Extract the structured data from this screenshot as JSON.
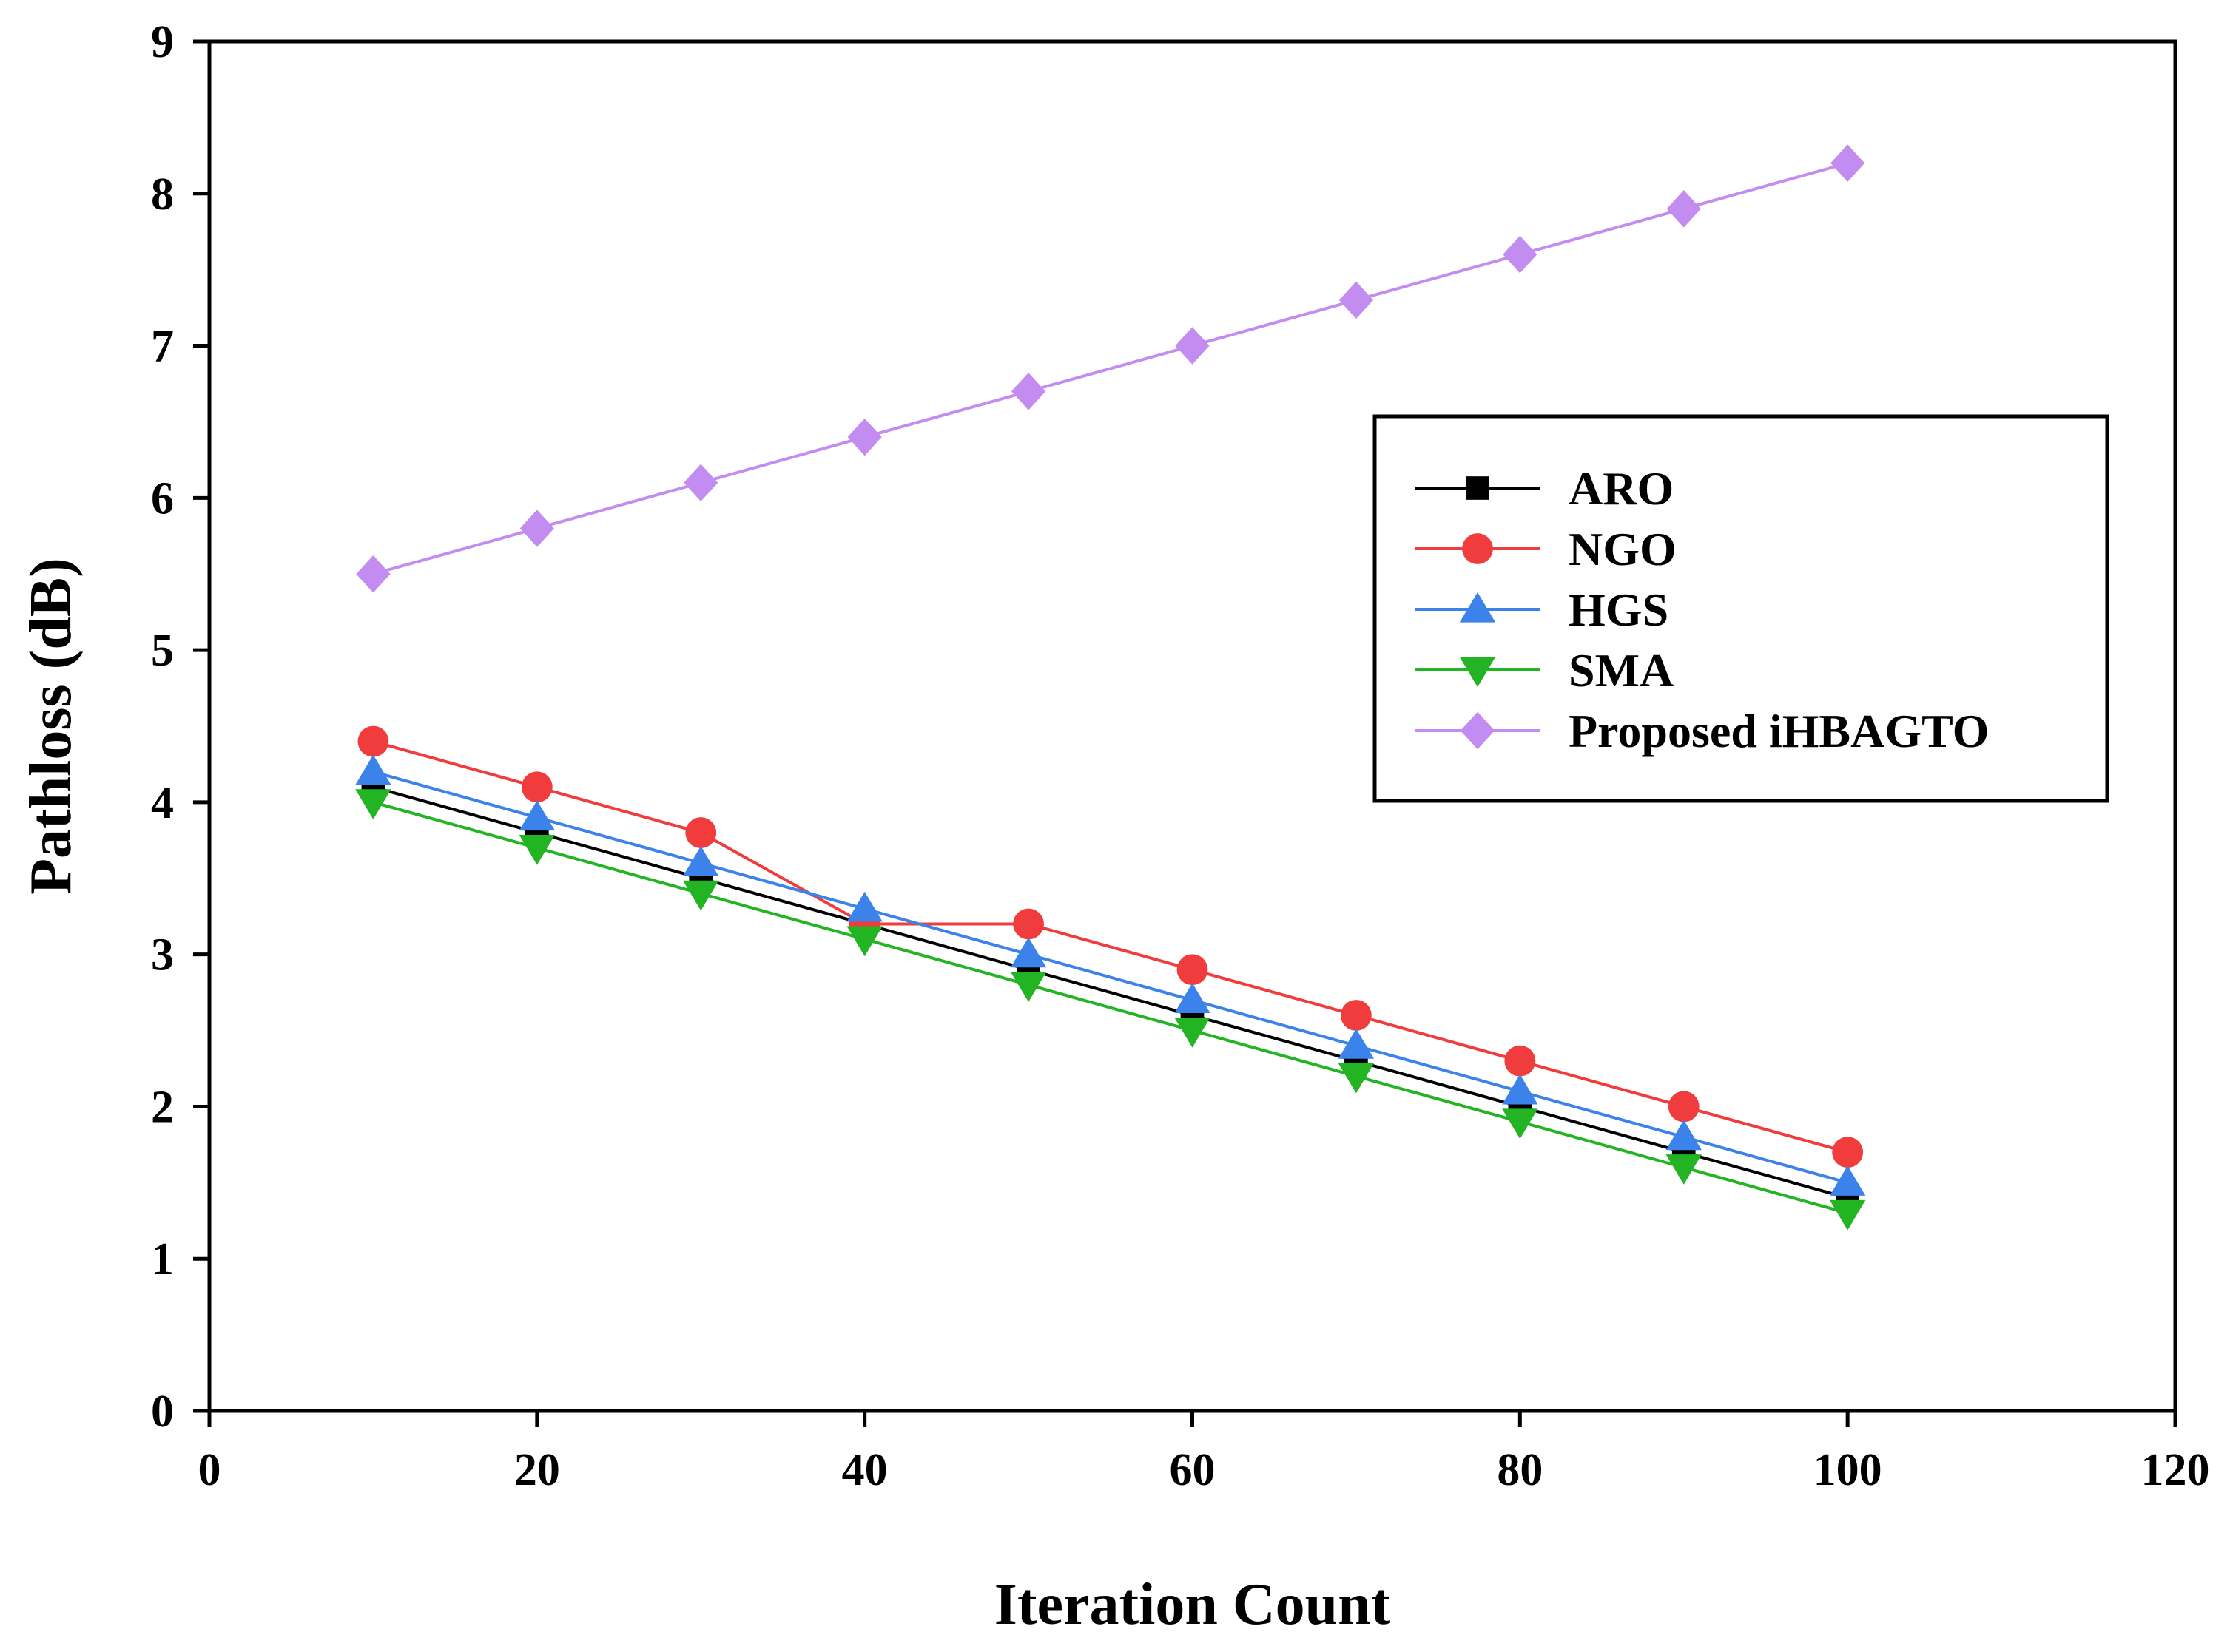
{
  "chart_data": {
    "type": "line",
    "title": "",
    "xlabel": "Iteration Count",
    "ylabel": "Pathloss (dB)",
    "xlim": [
      0,
      120
    ],
    "ylim": [
      0,
      9
    ],
    "xticks": [
      "0",
      "20",
      "40",
      "60",
      "80",
      "100",
      "120"
    ],
    "yticks": [
      "0",
      "1",
      "2",
      "3",
      "4",
      "5",
      "6",
      "7",
      "8",
      "9"
    ],
    "grid": false,
    "legend_position": "center-right",
    "x": [
      10,
      20,
      30,
      40,
      50,
      60,
      70,
      80,
      90,
      100
    ],
    "series": [
      {
        "name": "ARO",
        "color": "#000000",
        "marker": "square",
        "values": [
          4.1,
          3.8,
          3.5,
          3.2,
          2.9,
          2.6,
          2.3,
          2.0,
          1.7,
          1.4
        ]
      },
      {
        "name": "NGO",
        "color": "#f03c3c",
        "marker": "circle",
        "values": [
          4.4,
          4.1,
          3.8,
          3.2,
          3.2,
          2.9,
          2.6,
          2.3,
          2.0,
          1.7
        ]
      },
      {
        "name": "HGS",
        "color": "#3c82eb",
        "marker": "triangle-up",
        "values": [
          4.2,
          3.9,
          3.6,
          3.3,
          3.0,
          2.7,
          2.4,
          2.1,
          1.8,
          1.5
        ]
      },
      {
        "name": "SMA",
        "color": "#22b422",
        "marker": "triangle-down",
        "values": [
          4.0,
          3.7,
          3.4,
          3.1,
          2.8,
          2.5,
          2.2,
          1.9,
          1.6,
          1.3
        ]
      },
      {
        "name": "Proposed iHBAGTO",
        "color": "#c38cf0",
        "marker": "diamond",
        "values": [
          5.5,
          5.8,
          6.1,
          6.4,
          6.7,
          7.0,
          7.3,
          7.6,
          7.9,
          8.2
        ]
      }
    ]
  }
}
